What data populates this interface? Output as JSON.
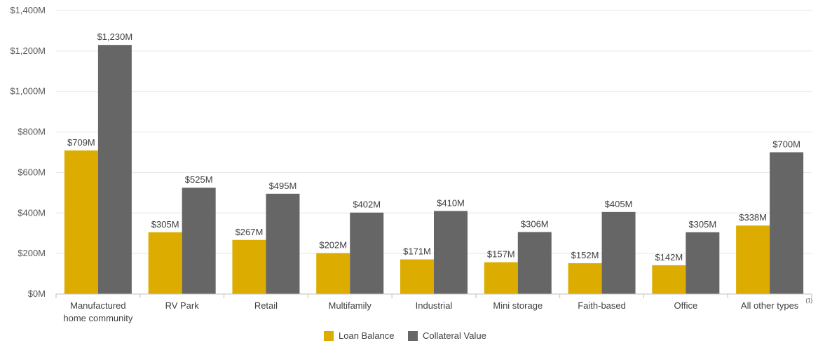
{
  "chart_data": {
    "type": "bar",
    "categories": [
      "Manufactured home community",
      "RV Park",
      "Retail",
      "Multifamily",
      "Industrial",
      "Mini storage",
      "Faith-based",
      "Office",
      "All other types"
    ],
    "category_lines": [
      [
        "Manufactured",
        "home community"
      ],
      [
        "RV Park"
      ],
      [
        "Retail"
      ],
      [
        "Multifamily"
      ],
      [
        "Industrial"
      ],
      [
        "Mini storage"
      ],
      [
        "Faith-based"
      ],
      [
        "Office"
      ],
      [
        "All other types"
      ]
    ],
    "category_footnotes": [
      "",
      "",
      "",
      "",
      "",
      "",
      "",
      "",
      "(1)"
    ],
    "series": [
      {
        "name": "Loan Balance",
        "color": "#dcad00",
        "values": [
          709,
          305,
          267,
          202,
          171,
          157,
          152,
          142,
          338
        ],
        "labels": [
          "$709M",
          "$305M",
          "$267M",
          "$202M",
          "$171M",
          "$157M",
          "$152M",
          "$142M",
          "$338M"
        ]
      },
      {
        "name": "Collateral Value",
        "color": "#666666",
        "values": [
          1230,
          525,
          495,
          402,
          410,
          306,
          405,
          305,
          700
        ],
        "labels": [
          "$1,230M",
          "$525M",
          "$495M",
          "$402M",
          "$410M",
          "$306M",
          "$405M",
          "$305M",
          "$700M"
        ]
      }
    ],
    "ylim": [
      0,
      1400
    ],
    "yticks": [
      0,
      200,
      400,
      600,
      800,
      1000,
      1200,
      1400
    ],
    "ytick_labels": [
      "$0M",
      "$200M",
      "$400M",
      "$600M",
      "$800M",
      "$1,000M",
      "$1,200M",
      "$1,400M"
    ],
    "grid": true,
    "legend_position": "bottom-center",
    "title": "",
    "xlabel": "",
    "ylabel": ""
  }
}
